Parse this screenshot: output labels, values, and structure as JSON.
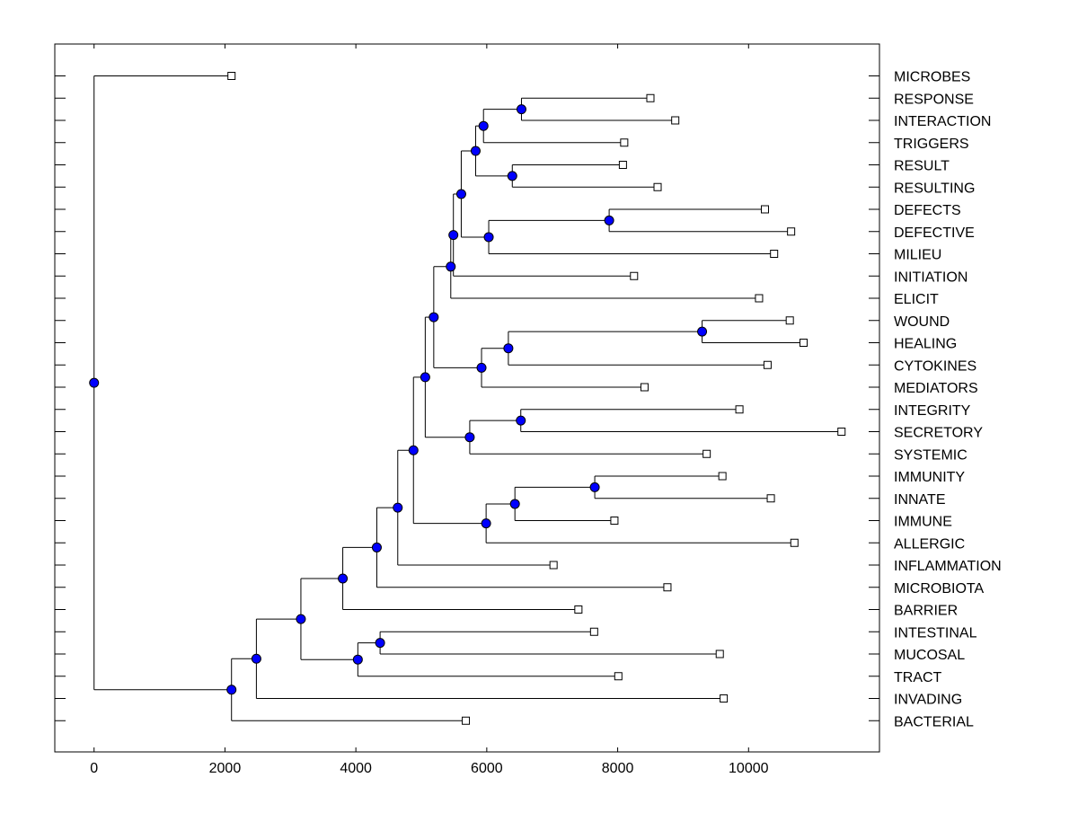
{
  "chart_data": {
    "type": "dendrogram",
    "orientation": "horizontal",
    "title": "",
    "xlabel": "",
    "ylabel": "",
    "xlim": [
      -600,
      12000
    ],
    "x_ticks": [
      0,
      2000,
      4000,
      6000,
      8000,
      10000
    ],
    "x_tick_labels": [
      "0",
      "2000",
      "4000",
      "6000",
      "8000",
      "10000"
    ],
    "colors": {
      "node_fill": "#0000ff",
      "leaf_fill": "#ffffff",
      "line": "#000000"
    },
    "leaves": [
      {
        "label": "MICROBES",
        "x": 2100
      },
      {
        "label": "RESPONSE",
        "x": 8500
      },
      {
        "label": "INTERACTION",
        "x": 8880
      },
      {
        "label": "TRIGGERS",
        "x": 8100
      },
      {
        "label": "RESULT",
        "x": 8080
      },
      {
        "label": "RESULTING",
        "x": 8610
      },
      {
        "label": "DEFECTS",
        "x": 10250
      },
      {
        "label": "DEFECTIVE",
        "x": 10650
      },
      {
        "label": "MILIEU",
        "x": 10390
      },
      {
        "label": "INITIATION",
        "x": 8250
      },
      {
        "label": "ELICIT",
        "x": 10160
      },
      {
        "label": "WOUND",
        "x": 10630
      },
      {
        "label": "HEALING",
        "x": 10840
      },
      {
        "label": "CYTOKINES",
        "x": 10290
      },
      {
        "label": "MEDIATORS",
        "x": 8410
      },
      {
        "label": "INTEGRITY",
        "x": 9860
      },
      {
        "label": "SECRETORY",
        "x": 11420
      },
      {
        "label": "SYSTEMIC",
        "x": 9360
      },
      {
        "label": "IMMUNITY",
        "x": 9600
      },
      {
        "label": "INNATE",
        "x": 10340
      },
      {
        "label": "IMMUNE",
        "x": 7950
      },
      {
        "label": "ALLERGIC",
        "x": 10700
      },
      {
        "label": "INFLAMMATION",
        "x": 7020
      },
      {
        "label": "MICROBIOTA",
        "x": 8760
      },
      {
        "label": "BARRIER",
        "x": 7400
      },
      {
        "label": "INTESTINAL",
        "x": 7640
      },
      {
        "label": "MUCOSAL",
        "x": 9560
      },
      {
        "label": "TRACT",
        "x": 8010
      },
      {
        "label": "INVADING",
        "x": 9620
      },
      {
        "label": "BACTERIAL",
        "x": 5680
      }
    ],
    "merges": [
      {
        "id": "n1",
        "x": 6530,
        "children": [
          "L1",
          "L2"
        ]
      },
      {
        "id": "n2",
        "x": 5950,
        "children": [
          "n1",
          "L3"
        ]
      },
      {
        "id": "n3",
        "x": 6390,
        "children": [
          "L4",
          "L5"
        ]
      },
      {
        "id": "n4",
        "x": 5830,
        "children": [
          "n2",
          "n3"
        ]
      },
      {
        "id": "n5",
        "x": 7870,
        "children": [
          "L6",
          "L7"
        ]
      },
      {
        "id": "n6",
        "x": 6030,
        "children": [
          "n5",
          "L8"
        ]
      },
      {
        "id": "n7",
        "x": 5610,
        "children": [
          "n4",
          "n6"
        ]
      },
      {
        "id": "n8",
        "x": 5490,
        "children": [
          "n7",
          "L9"
        ]
      },
      {
        "id": "n9",
        "x": 5450,
        "children": [
          "n8",
          "L10"
        ]
      },
      {
        "id": "n10",
        "x": 9290,
        "children": [
          "L11",
          "L12"
        ]
      },
      {
        "id": "n11",
        "x": 6330,
        "children": [
          "n10",
          "L13"
        ]
      },
      {
        "id": "n12",
        "x": 5920,
        "children": [
          "n11",
          "L14"
        ]
      },
      {
        "id": "n13",
        "x": 5190,
        "children": [
          "n9",
          "n12"
        ]
      },
      {
        "id": "n14",
        "x": 6520,
        "children": [
          "L15",
          "L16"
        ]
      },
      {
        "id": "n15",
        "x": 5740,
        "children": [
          "n14",
          "L17"
        ]
      },
      {
        "id": "n16",
        "x": 5060,
        "children": [
          "n13",
          "n15"
        ]
      },
      {
        "id": "n17",
        "x": 7650,
        "children": [
          "L18",
          "L19"
        ]
      },
      {
        "id": "n18",
        "x": 6430,
        "children": [
          "n17",
          "L20"
        ]
      },
      {
        "id": "n19",
        "x": 5990,
        "children": [
          "n18",
          "L21"
        ]
      },
      {
        "id": "n20",
        "x": 4880,
        "children": [
          "n16",
          "n19"
        ]
      },
      {
        "id": "n21",
        "x": 4640,
        "children": [
          "n20",
          "L22"
        ]
      },
      {
        "id": "n22",
        "x": 4320,
        "children": [
          "n21",
          "L23"
        ]
      },
      {
        "id": "n23",
        "x": 3800,
        "children": [
          "n22",
          "L24"
        ]
      },
      {
        "id": "n24",
        "x": 4370,
        "children": [
          "L25",
          "L26"
        ]
      },
      {
        "id": "n25",
        "x": 4030,
        "children": [
          "n24",
          "L27"
        ]
      },
      {
        "id": "n26",
        "x": 3160,
        "children": [
          "n23",
          "n25"
        ]
      },
      {
        "id": "n27",
        "x": 2480,
        "children": [
          "n26",
          "L28"
        ]
      },
      {
        "id": "n28",
        "x": 2100,
        "children": [
          "n27",
          "L29"
        ]
      },
      {
        "id": "n29",
        "x": 0,
        "children": [
          "L0",
          "n28"
        ]
      }
    ]
  }
}
